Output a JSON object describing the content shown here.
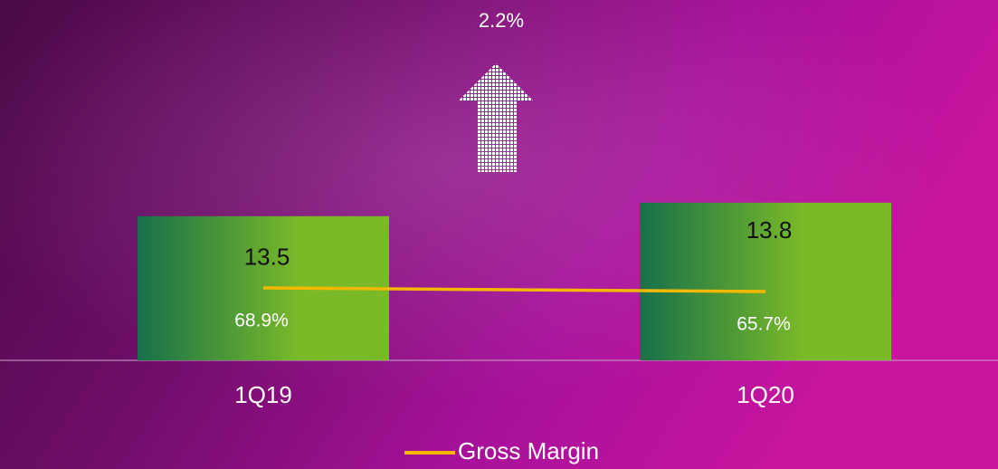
{
  "chart_data": {
    "type": "bar",
    "annotation": "2.2%",
    "categories": [
      "1Q19",
      "1Q20"
    ],
    "series": [
      {
        "color": "#7aba28",
        "values": [
          13.5,
          13.8
        ]
      },
      {
        "name": "Gross Margin",
        "type": "line",
        "axis": "y2",
        "color": "#f5b800",
        "values": [
          68.9,
          65.7
        ],
        "value_labels": [
          "68.9%",
          "65.7%"
        ]
      }
    ],
    "ylim": [
      10.3,
      18.3
    ],
    "y2lim": [
      4.9,
      323.3
    ],
    "legend": "bottom"
  }
}
